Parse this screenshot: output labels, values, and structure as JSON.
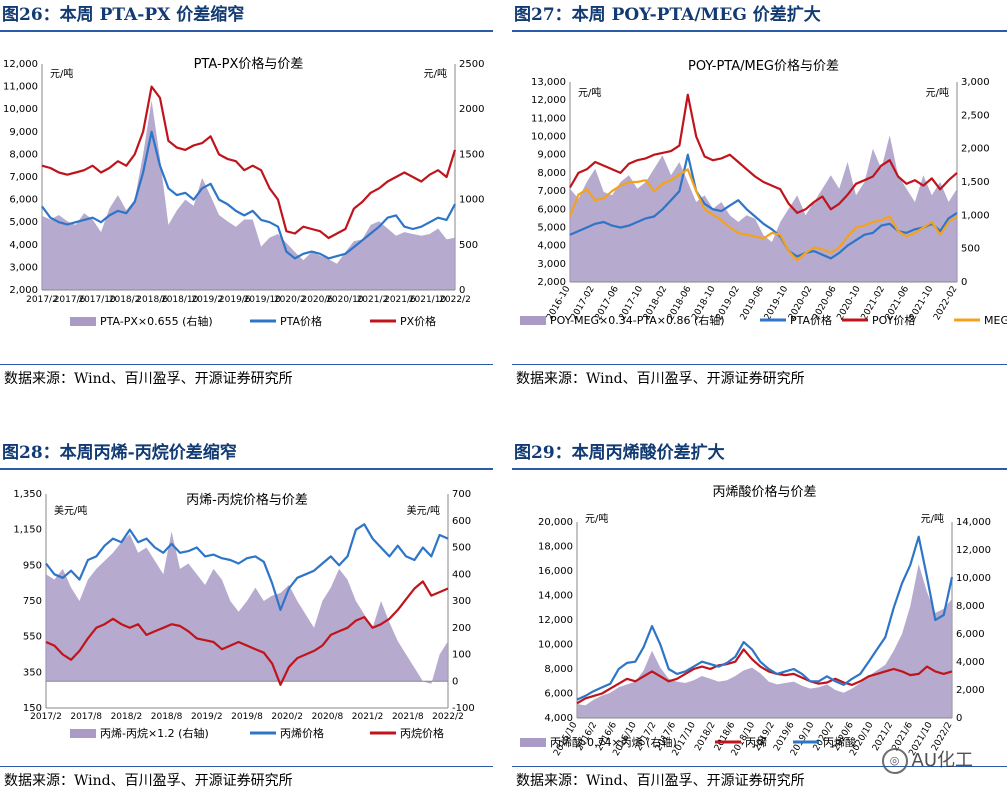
{
  "source_text": "数据来源：Wind、百川盈孚、开源证券研究所",
  "watermark": "AU化工",
  "chart_data": [
    {
      "fig_title": "图26：本周 PTA-PX 价差缩窄",
      "type": "line",
      "title": "PTA-PX价格与价差",
      "left_unit": "元/吨",
      "right_unit": "元/吨",
      "ylim_left": [
        2000,
        12000
      ],
      "ylim_right": [
        0,
        2500
      ],
      "yticks_left": [
        "2,000",
        "3,000",
        "4,000",
        "5,000",
        "6,000",
        "7,000",
        "8,000",
        "9,000",
        "10,000",
        "11,000",
        "12,000"
      ],
      "yticks_right": [
        "0",
        "500",
        "1000",
        "1500",
        "2000",
        "2500"
      ],
      "xticks": [
        "2017/2",
        "2017/6",
        "2017/10",
        "2018/2",
        "2018/6",
        "2018/10",
        "2019/2",
        "2019/6",
        "2019/10",
        "2020/2",
        "2020/6",
        "2020/10",
        "2021/2",
        "2021/6",
        "2021/10",
        "2022/2"
      ],
      "series": [
        {
          "name": "PTA-PX×0.655 (右轴)",
          "kind": "area",
          "axis": "right",
          "color": "#a99bc6",
          "values": [
            820,
            780,
            830,
            760,
            720,
            850,
            780,
            640,
            900,
            1050,
            880,
            1000,
            1500,
            2100,
            1450,
            720,
            880,
            1000,
            930,
            1240,
            1040,
            830,
            760,
            700,
            780,
            780,
            480,
            580,
            620,
            520,
            420,
            330,
            420,
            380,
            340,
            290,
            420,
            540,
            560,
            720,
            760,
            680,
            600,
            640,
            620,
            600,
            620,
            680,
            560,
            580
          ]
        },
        {
          "name": "PTA价格",
          "kind": "line",
          "axis": "left",
          "color": "#2e75c8",
          "values": [
            5700,
            5200,
            5000,
            4900,
            5000,
            5100,
            5200,
            5000,
            5300,
            5500,
            5400,
            5900,
            7200,
            9000,
            7500,
            6500,
            6200,
            6300,
            6000,
            6500,
            6700,
            6000,
            5800,
            5500,
            5300,
            5500,
            5100,
            5000,
            4800,
            3700,
            3400,
            3600,
            3700,
            3600,
            3400,
            3500,
            3600,
            3900,
            4200,
            4500,
            4800,
            5200,
            5300,
            4800,
            4700,
            4800,
            5000,
            5200,
            5100,
            5800
          ]
        },
        {
          "name": "PX价格",
          "kind": "line",
          "axis": "left",
          "color": "#c0141c",
          "values": [
            7500,
            7400,
            7200,
            7100,
            7200,
            7300,
            7500,
            7200,
            7400,
            7700,
            7500,
            8000,
            9000,
            11000,
            10500,
            8600,
            8300,
            8200,
            8400,
            8500,
            8800,
            8000,
            7800,
            7700,
            7300,
            7500,
            7300,
            6500,
            6000,
            4600,
            4500,
            4800,
            4700,
            4600,
            4300,
            4500,
            4700,
            5600,
            5900,
            6300,
            6500,
            6800,
            7000,
            7200,
            7000,
            6800,
            7100,
            7300,
            7000,
            8200
          ]
        }
      ]
    },
    {
      "fig_title": "图27：本周 POY-PTA/MEG 价差扩大",
      "type": "line",
      "title": "POY-PTA/MEG价格与价差",
      "left_unit": "元/吨",
      "right_unit": "元/吨",
      "ylim_left": [
        2000,
        13000
      ],
      "ylim_right": [
        0,
        3000
      ],
      "yticks_left": [
        "2,000",
        "3,000",
        "4,000",
        "5,000",
        "6,000",
        "7,000",
        "8,000",
        "9,000",
        "10,000",
        "11,000",
        "12,000",
        "13,000"
      ],
      "yticks_right": [
        "0",
        "500",
        "1,000",
        "1,500",
        "2,000",
        "2,500",
        "3,000"
      ],
      "xticks": [
        "2016-10",
        "2017-02",
        "2017-06",
        "2017-10",
        "2018-02",
        "2018-06",
        "2018-10",
        "2019-02",
        "2019-06",
        "2019-10",
        "2020-02",
        "2020-06",
        "2020-10",
        "2021-02",
        "2021-06",
        "2021-10",
        "2022-02"
      ],
      "series": [
        {
          "name": "POY-MEG×0.34-PTA×0.86 (右轴)",
          "kind": "area",
          "axis": "right",
          "color": "#a99bc6",
          "values": [
            1400,
            1250,
            1500,
            1700,
            1350,
            1300,
            1500,
            1600,
            1400,
            1500,
            1700,
            1900,
            1600,
            1800,
            1500,
            1200,
            1300,
            1100,
            1200,
            1000,
            900,
            1000,
            950,
            700,
            600,
            900,
            1100,
            1300,
            1000,
            1200,
            1400,
            1600,
            1400,
            1800,
            1300,
            1500,
            2000,
            1700,
            2200,
            1600,
            1400,
            1200,
            1600,
            1300,
            1500,
            1200,
            1400
          ]
        },
        {
          "name": "PTA价格",
          "kind": "line",
          "axis": "left",
          "color": "#2e75c8",
          "values": [
            4600,
            4800,
            5000,
            5200,
            5300,
            5100,
            5000,
            5100,
            5300,
            5500,
            5600,
            6000,
            6500,
            7000,
            9000,
            7000,
            6300,
            6000,
            5900,
            6200,
            6500,
            6000,
            5600,
            5200,
            4900,
            4500,
            3700,
            3400,
            3600,
            3700,
            3500,
            3300,
            3600,
            4000,
            4300,
            4600,
            4700,
            5100,
            5200,
            4800,
            4700,
            4900,
            5000,
            5200,
            4800,
            5500,
            5800
          ]
        },
        {
          "name": "POY价格",
          "kind": "line",
          "axis": "left",
          "color": "#c0141c",
          "values": [
            7200,
            8000,
            8200,
            8600,
            8400,
            8200,
            8000,
            8500,
            8700,
            8800,
            9000,
            9100,
            9200,
            9500,
            12300,
            10000,
            8900,
            8700,
            8800,
            9000,
            8600,
            8200,
            7800,
            7500,
            7300,
            7100,
            6300,
            5800,
            6000,
            6400,
            6700,
            6000,
            6300,
            6800,
            7400,
            7600,
            7800,
            8400,
            8700,
            7800,
            7400,
            7600,
            7300,
            7700,
            7100,
            7600,
            8000
          ]
        },
        {
          "name": "MEG价格",
          "kind": "line",
          "axis": "left",
          "color": "#f4a21d",
          "values": [
            5600,
            6800,
            7100,
            6500,
            6600,
            7000,
            7300,
            7500,
            7500,
            7600,
            7000,
            7400,
            7600,
            7900,
            8200,
            7000,
            6000,
            5700,
            5400,
            5000,
            4700,
            4600,
            4500,
            4400,
            4700,
            4600,
            3700,
            3200,
            3600,
            3900,
            3800,
            3600,
            3900,
            4500,
            5000,
            5100,
            5300,
            5400,
            5600,
            4800,
            4500,
            4700,
            5000,
            5300,
            4600,
            5300,
            5600
          ]
        }
      ]
    },
    {
      "fig_title": "图28：本周丙烯-丙烷价差缩窄",
      "type": "line",
      "title": "丙烯-丙烷价格与价差",
      "left_unit": "美元/吨",
      "right_unit": "美元/吨",
      "ylim_left": [
        150,
        1350
      ],
      "ylim_right": [
        -100,
        700
      ],
      "yticks_left": [
        "150",
        "350",
        "550",
        "750",
        "950",
        "1,150",
        "1,350"
      ],
      "yticks_right": [
        "-100",
        "0",
        "100",
        "200",
        "300",
        "400",
        "500",
        "600",
        "700"
      ],
      "xticks": [
        "2017/2",
        "2017/8",
        "2018/2",
        "2018/8",
        "2019/2",
        "2019/8",
        "2020/2",
        "2020/8",
        "2021/2",
        "2021/8",
        "2022/2"
      ],
      "series": [
        {
          "name": "丙烯-丙烷×1.2 (右轴)",
          "kind": "area",
          "axis": "right",
          "color": "#a99bc6",
          "values": [
            400,
            380,
            420,
            350,
            300,
            380,
            420,
            450,
            480,
            520,
            550,
            480,
            500,
            450,
            400,
            560,
            420,
            440,
            400,
            360,
            420,
            380,
            300,
            260,
            300,
            350,
            300,
            320,
            330,
            360,
            300,
            250,
            200,
            300,
            350,
            420,
            380,
            300,
            250,
            200,
            300,
            220,
            150,
            100,
            50,
            0,
            -10,
            100,
            150
          ]
        },
        {
          "name": "丙烯价格",
          "kind": "line",
          "axis": "left",
          "color": "#2e75c8",
          "values": [
            960,
            900,
            880,
            920,
            870,
            980,
            1000,
            1060,
            1100,
            1080,
            1150,
            1080,
            1100,
            1050,
            1020,
            1070,
            1020,
            1030,
            1050,
            1000,
            1010,
            990,
            980,
            960,
            990,
            1000,
            970,
            850,
            700,
            820,
            880,
            900,
            920,
            960,
            1000,
            950,
            1000,
            1150,
            1180,
            1100,
            1050,
            1000,
            1060,
            1000,
            980,
            1050,
            1000,
            1120,
            1100
          ]
        },
        {
          "name": "丙烷价格",
          "kind": "line",
          "axis": "left",
          "color": "#c0141c",
          "values": [
            520,
            500,
            450,
            420,
            470,
            540,
            600,
            620,
            650,
            620,
            600,
            620,
            560,
            580,
            600,
            620,
            610,
            580,
            540,
            530,
            520,
            480,
            500,
            520,
            500,
            480,
            460,
            400,
            280,
            380,
            430,
            450,
            470,
            500,
            560,
            580,
            600,
            640,
            660,
            600,
            620,
            650,
            700,
            760,
            820,
            860,
            780,
            800,
            820
          ]
        }
      ]
    },
    {
      "fig_title": "图29：本周丙烯酸价差扩大",
      "type": "line",
      "title": "丙烯酸价格与价差",
      "left_unit": "元/吨",
      "right_unit": "元/吨",
      "ylim_left": [
        4000,
        20000
      ],
      "ylim_right": [
        0,
        14000
      ],
      "yticks_left": [
        "4,000",
        "6,000",
        "8,000",
        "10,000",
        "12,000",
        "14,000",
        "16,000",
        "18,000",
        "20,000"
      ],
      "yticks_right": [
        "0",
        "2,000",
        "4,000",
        "6,000",
        "8,000",
        "10,000",
        "12,000",
        "14,000"
      ],
      "xticks": [
        "2015/10",
        "2016/2",
        "2016/6",
        "2016/10",
        "2017/2",
        "2017/6",
        "2017/10",
        "2018/2",
        "2018/6",
        "2018/10",
        "2019/2",
        "2019/6",
        "2019/10",
        "2020/2",
        "2020/6",
        "2020/10",
        "2021/2",
        "2021/6",
        "2021/10",
        "2022/2"
      ],
      "series": [
        {
          "name": "丙烯酸-0.74×丙烯 (右轴)",
          "kind": "area",
          "axis": "right",
          "color": "#a99bc6",
          "values": [
            1000,
            900,
            1300,
            1600,
            1800,
            2200,
            2400,
            2600,
            3400,
            4800,
            3600,
            2800,
            2600,
            2500,
            2700,
            3000,
            2800,
            2600,
            2700,
            3000,
            3400,
            3600,
            3200,
            2600,
            2400,
            2500,
            2600,
            2300,
            2100,
            2200,
            2400,
            2000,
            1800,
            2100,
            2500,
            3000,
            3400,
            3800,
            4800,
            6000,
            8000,
            11000,
            9000,
            7500,
            7800,
            8500
          ]
        },
        {
          "name": "丙烯",
          "kind": "line",
          "axis": "left",
          "color": "#c0141c",
          "values": [
            5200,
            5600,
            5800,
            6000,
            6400,
            6800,
            7200,
            7000,
            7400,
            7800,
            7400,
            7000,
            7200,
            7600,
            8000,
            8200,
            8000,
            8300,
            8400,
            8600,
            9600,
            8800,
            8200,
            7800,
            7600,
            7500,
            7600,
            7300,
            7000,
            6800,
            6900,
            7200,
            6900,
            6700,
            7000,
            7400,
            7600,
            7800,
            8000,
            7800,
            7500,
            7600,
            8200,
            7800,
            7600,
            7800
          ]
        },
        {
          "name": "丙烯酸",
          "kind": "line",
          "axis": "left",
          "color": "#2e75c8",
          "values": [
            5500,
            5800,
            6200,
            6500,
            6800,
            8000,
            8500,
            8600,
            9800,
            11500,
            10000,
            8000,
            7600,
            7800,
            8200,
            8600,
            8400,
            8200,
            8500,
            9000,
            10200,
            9600,
            8600,
            8000,
            7600,
            7800,
            8000,
            7600,
            7000,
            7000,
            7400,
            7000,
            6700,
            7200,
            7600,
            8600,
            9600,
            10600,
            13000,
            15000,
            16500,
            18800,
            15500,
            12000,
            12400,
            15500
          ]
        }
      ]
    }
  ]
}
